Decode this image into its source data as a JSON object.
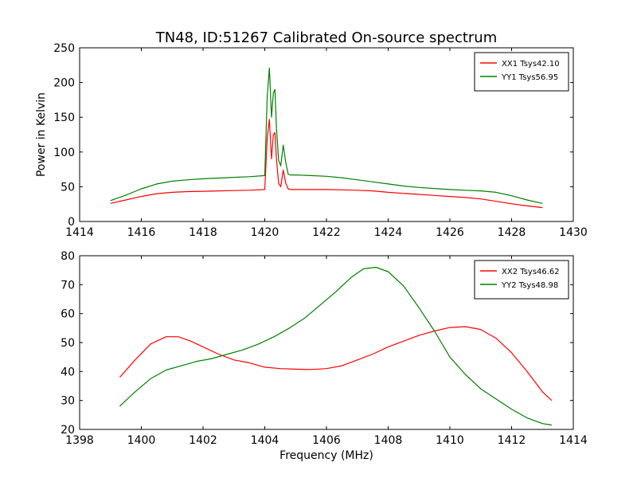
{
  "chart_data": [
    {
      "type": "line",
      "title": "TN48, ID:51267 Calibrated On-source spectrum",
      "xlabel": "",
      "ylabel": "Power in Kelvin",
      "xlim": [
        1414,
        1430
      ],
      "ylim": [
        0,
        250
      ],
      "xticks": [
        1414,
        1416,
        1418,
        1420,
        1422,
        1424,
        1426,
        1428,
        1430
      ],
      "yticks": [
        0,
        50,
        100,
        150,
        200,
        250
      ],
      "legend_position": "top-right",
      "grid": false,
      "series": [
        {
          "name": "XX1 Tsys42.10",
          "color": "#ff0000",
          "x": [
            1415.0,
            1415.5,
            1416.0,
            1416.5,
            1417.0,
            1417.5,
            1418.0,
            1418.5,
            1419.0,
            1419.5,
            1420.0,
            1420.08,
            1420.15,
            1420.22,
            1420.28,
            1420.33,
            1420.38,
            1420.45,
            1420.52,
            1420.6,
            1420.68,
            1420.76,
            1420.84,
            1421.0,
            1421.5,
            1422.0,
            1422.5,
            1423.0,
            1423.5,
            1424.0,
            1424.5,
            1425.0,
            1425.5,
            1426.0,
            1426.5,
            1427.0,
            1427.5,
            1428.0,
            1428.5,
            1429.0
          ],
          "y": [
            26,
            31,
            36,
            40,
            42,
            43,
            43.5,
            44,
            44.5,
            45,
            46,
            120,
            147,
            90,
            125,
            128,
            90,
            55,
            50,
            74,
            55,
            47,
            46,
            46,
            46,
            46,
            45.5,
            45,
            44,
            42,
            40.5,
            39,
            37.5,
            36,
            34.5,
            32.5,
            29,
            25.5,
            22.5,
            20
          ]
        },
        {
          "name": "YY1 Tsys56.95",
          "color": "#008000",
          "x": [
            1415.0,
            1415.5,
            1416.0,
            1416.5,
            1417.0,
            1417.5,
            1418.0,
            1418.5,
            1419.0,
            1419.5,
            1420.0,
            1420.08,
            1420.15,
            1420.22,
            1420.28,
            1420.33,
            1420.38,
            1420.45,
            1420.52,
            1420.6,
            1420.68,
            1420.76,
            1420.84,
            1421.0,
            1421.5,
            1422.0,
            1422.5,
            1423.0,
            1423.5,
            1424.0,
            1424.5,
            1425.0,
            1425.5,
            1426.0,
            1426.5,
            1427.0,
            1427.5,
            1428.0,
            1428.5,
            1429.0
          ],
          "y": [
            30,
            38,
            47,
            54,
            58,
            60,
            61.5,
            62.5,
            63.5,
            64.5,
            66,
            180,
            221,
            150,
            185,
            190,
            135,
            88,
            80,
            110,
            85,
            68,
            67,
            67,
            66,
            65,
            63,
            60,
            57,
            54,
            51,
            49,
            47.5,
            46,
            45,
            44,
            42,
            37,
            31,
            26
          ]
        }
      ]
    },
    {
      "type": "line",
      "title": "",
      "xlabel": "Frequency (MHz)",
      "ylabel": "",
      "xlim": [
        1398,
        1414
      ],
      "ylim": [
        20,
        80
      ],
      "xticks": [
        1398,
        1400,
        1402,
        1404,
        1406,
        1408,
        1410,
        1412,
        1414
      ],
      "yticks": [
        20,
        30,
        40,
        50,
        60,
        70,
        80
      ],
      "legend_position": "top-right",
      "grid": false,
      "series": [
        {
          "name": "XX2 Tsys46.62",
          "color": "#ff0000",
          "x": [
            1399.3,
            1399.8,
            1400.3,
            1400.8,
            1401.2,
            1401.6,
            1402.0,
            1402.5,
            1403.0,
            1403.5,
            1404.0,
            1404.5,
            1405.0,
            1405.5,
            1406.0,
            1406.5,
            1407.0,
            1407.5,
            1408.0,
            1408.5,
            1409.0,
            1409.5,
            1410.0,
            1410.5,
            1411.0,
            1411.5,
            1412.0,
            1412.5,
            1413.0,
            1413.3
          ],
          "y": [
            38,
            44,
            49.5,
            52,
            52,
            50.5,
            48.5,
            46,
            44,
            43,
            41.5,
            41,
            40.8,
            40.7,
            41,
            42,
            44,
            46,
            48.5,
            50.5,
            52.5,
            54,
            55.2,
            55.5,
            54.5,
            51.5,
            46.5,
            40,
            33,
            30
          ]
        },
        {
          "name": "YY2 Tsys48.98",
          "color": "#008000",
          "x": [
            1399.3,
            1399.8,
            1400.3,
            1400.8,
            1401.3,
            1401.8,
            1402.3,
            1402.8,
            1403.3,
            1403.8,
            1404.3,
            1404.8,
            1405.3,
            1405.8,
            1406.3,
            1406.8,
            1407.2,
            1407.6,
            1408.0,
            1408.5,
            1409.0,
            1409.5,
            1410.0,
            1410.5,
            1411.0,
            1411.5,
            1412.0,
            1412.5,
            1413.0,
            1413.3
          ],
          "y": [
            28,
            33,
            37.5,
            40.5,
            42,
            43.5,
            44.5,
            46,
            47.5,
            49.5,
            52,
            55,
            58.5,
            63,
            67.5,
            72.5,
            75.5,
            76,
            74.5,
            69.5,
            62,
            54,
            45,
            39,
            34,
            30.5,
            27,
            24,
            22,
            21.5
          ]
        }
      ]
    }
  ]
}
